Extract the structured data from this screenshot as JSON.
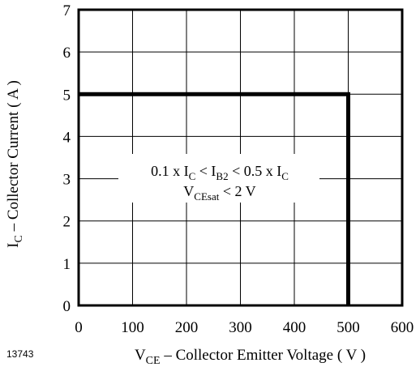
{
  "chart_data": {
    "type": "line",
    "figure_id": "13743",
    "xlabel": {
      "main": "V",
      "sub": "CE",
      "rest": " – Collector Emitter Voltage ( V )"
    },
    "ylabel": {
      "main": "I",
      "sub": "C",
      "rest": " – Collector Current ( A )"
    },
    "xlim": [
      0,
      600
    ],
    "ylim": [
      0,
      7
    ],
    "x_ticks": [
      0,
      100,
      200,
      300,
      400,
      500,
      600
    ],
    "y_ticks": [
      0,
      1,
      2,
      3,
      4,
      5,
      6,
      7
    ],
    "grid": true,
    "series": [
      {
        "color": "#000000",
        "x": [
          0,
          500,
          500
        ],
        "y": [
          5,
          5,
          0
        ]
      }
    ],
    "annotation": {
      "line1": [
        {
          "t": "0.1 x I"
        },
        {
          "t": "C",
          "sub": true
        },
        {
          "t": " < I"
        },
        {
          "t": "B2",
          "sub": true
        },
        {
          "t": " < 0.5 x I"
        },
        {
          "t": "C",
          "sub": true
        }
      ],
      "line2": [
        {
          "t": "V"
        },
        {
          "t": "CEsat",
          "sub": true
        },
        {
          "t": "  < 2 V"
        }
      ]
    }
  }
}
